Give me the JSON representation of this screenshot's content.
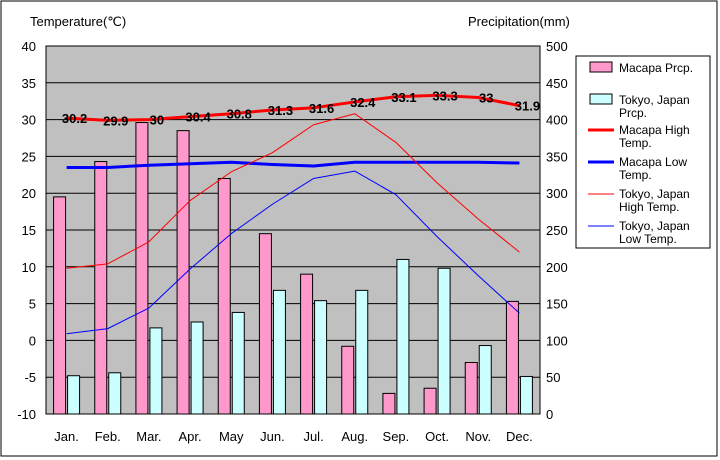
{
  "chart_data": {
    "type": "bar-line-combo",
    "left_axis": {
      "title": "Temperature(℃)",
      "min": -10,
      "max": 40,
      "step": 5
    },
    "right_axis": {
      "title": "Precipitation(mm)",
      "min": 0,
      "max": 500,
      "step": 50
    },
    "categories": [
      "Jan.",
      "Feb.",
      "Mar.",
      "Apr.",
      "May",
      "Jun.",
      "Jul.",
      "Aug.",
      "Sep.",
      "Oct.",
      "Nov.",
      "Dec."
    ],
    "bar_series": [
      {
        "name": "Macapa Prcp.",
        "color": "#ff99cc",
        "values": [
          295,
          343,
          396,
          385,
          320,
          245,
          190,
          92,
          28,
          35,
          70,
          153
        ]
      },
      {
        "name": "Tokyo, Japan Prcp.",
        "color": "#ccffff",
        "values": [
          52,
          56,
          117,
          125,
          138,
          168,
          154,
          168,
          210,
          198,
          93,
          51
        ]
      }
    ],
    "line_series": [
      {
        "name": "Macapa High Temp.",
        "color": "#ff0000",
        "width": 3,
        "values": [
          30.2,
          29.9,
          30,
          30.4,
          30.8,
          31.3,
          31.6,
          32.4,
          33.1,
          33.3,
          33,
          31.9
        ],
        "labels": [
          "30.2",
          "29.9",
          "30",
          "30.4",
          "30.8",
          "31.3",
          "31.6",
          "32.4",
          "33.1",
          "33.3",
          "33",
          "31.9"
        ]
      },
      {
        "name": "Macapa Low Temp.",
        "color": "#0000ff",
        "width": 3,
        "values": [
          23.5,
          23.5,
          23.8,
          24,
          24.2,
          23.9,
          23.7,
          24.2,
          24.2,
          24.2,
          24.2,
          24.1
        ]
      },
      {
        "name": "Tokyo, Japan High Temp.",
        "color": "#ff0000",
        "width": 1,
        "values": [
          9.8,
          10.4,
          13.4,
          19.0,
          22.9,
          25.5,
          29.3,
          30.8,
          26.9,
          21.4,
          16.5,
          12.0
        ]
      },
      {
        "name": "Tokyo, Japan Low Temp.",
        "color": "#0000ff",
        "width": 1,
        "values": [
          0.9,
          1.6,
          4.4,
          9.7,
          14.5,
          18.5,
          22.0,
          23.0,
          19.8,
          14.1,
          8.8,
          3.7
        ]
      }
    ],
    "legend": {
      "position": "right"
    },
    "grid": {
      "horizontal": true,
      "vertical": false
    },
    "plot_background": "#c0c0c0"
  }
}
